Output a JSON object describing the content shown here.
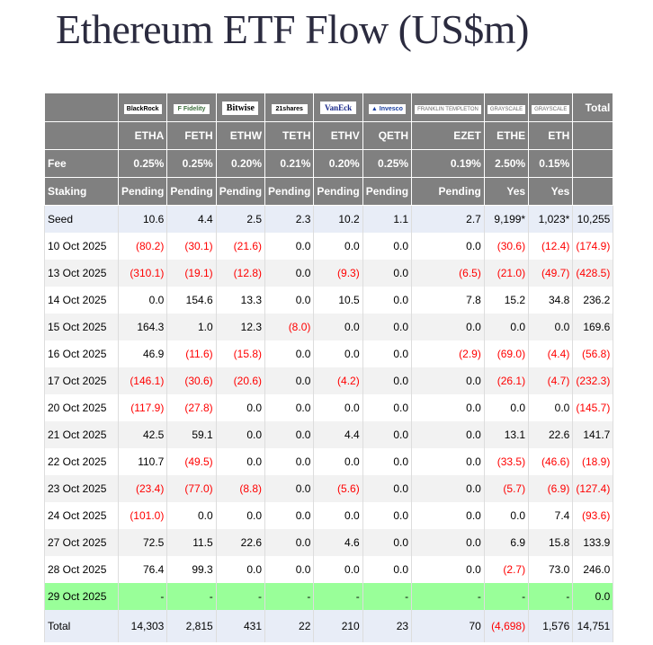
{
  "title": "Ethereum ETF Flow (US$m)",
  "issuers": [
    "BlackRock",
    "Fidelity",
    "Bitwise",
    "21shares",
    "VanEck",
    "Invesco",
    "Franklin Templeton",
    "Grayscale",
    "Grayscale"
  ],
  "tickers": [
    "ETHA",
    "FETH",
    "ETHW",
    "TETH",
    "ETHV",
    "QETH",
    "EZET",
    "ETHE",
    "ETH"
  ],
  "total_label": "Total",
  "fee_label": "Fee",
  "fees": [
    "0.25%",
    "0.25%",
    "0.20%",
    "0.21%",
    "0.20%",
    "0.25%",
    "0.19%",
    "2.50%",
    "0.15%"
  ],
  "staking_label": "Staking",
  "staking": [
    "Pending",
    "Pending",
    "Pending",
    "Pending",
    "Pending",
    "Pending",
    "Pending",
    "Yes",
    "Yes"
  ],
  "colors": {
    "header": "#808080",
    "negative": "#ff0000",
    "today": "#99ff99",
    "seed_total": "#e8edf7",
    "alt_row": "#f2f2f2"
  },
  "rows": [
    {
      "label": "Seed",
      "values": [
        "10.6",
        "4.4",
        "2.5",
        "2.3",
        "10.2",
        "1.1",
        "2.7",
        "9,199*",
        "1,023*",
        "10,255"
      ],
      "style": "seed"
    },
    {
      "label": "10 Oct 2025",
      "values": [
        "(80.2)",
        "(30.1)",
        "(21.6)",
        "0.0",
        "0.0",
        "0.0",
        "0.0",
        "(30.6)",
        "(12.4)",
        "(174.9)"
      ],
      "style": ""
    },
    {
      "label": "13 Oct 2025",
      "values": [
        "(310.1)",
        "(19.1)",
        "(12.8)",
        "0.0",
        "(9.3)",
        "0.0",
        "(6.5)",
        "(21.0)",
        "(49.7)",
        "(428.5)"
      ],
      "style": "alt"
    },
    {
      "label": "14 Oct 2025",
      "values": [
        "0.0",
        "154.6",
        "13.3",
        "0.0",
        "10.5",
        "0.0",
        "7.8",
        "15.2",
        "34.8",
        "236.2"
      ],
      "style": ""
    },
    {
      "label": "15 Oct 2025",
      "values": [
        "164.3",
        "1.0",
        "12.3",
        "(8.0)",
        "0.0",
        "0.0",
        "0.0",
        "0.0",
        "0.0",
        "169.6"
      ],
      "style": "alt"
    },
    {
      "label": "16 Oct 2025",
      "values": [
        "46.9",
        "(11.6)",
        "(15.8)",
        "0.0",
        "0.0",
        "0.0",
        "(2.9)",
        "(69.0)",
        "(4.4)",
        "(56.8)"
      ],
      "style": ""
    },
    {
      "label": "17 Oct 2025",
      "values": [
        "(146.1)",
        "(30.6)",
        "(20.6)",
        "0.0",
        "(4.2)",
        "0.0",
        "0.0",
        "(26.1)",
        "(4.7)",
        "(232.3)"
      ],
      "style": "alt"
    },
    {
      "label": "20 Oct 2025",
      "values": [
        "(117.9)",
        "(27.8)",
        "0.0",
        "0.0",
        "0.0",
        "0.0",
        "0.0",
        "0.0",
        "0.0",
        "(145.7)"
      ],
      "style": ""
    },
    {
      "label": "21 Oct 2025",
      "values": [
        "42.5",
        "59.1",
        "0.0",
        "0.0",
        "4.4",
        "0.0",
        "0.0",
        "13.1",
        "22.6",
        "141.7"
      ],
      "style": "alt"
    },
    {
      "label": "22 Oct 2025",
      "values": [
        "110.7",
        "(49.5)",
        "0.0",
        "0.0",
        "0.0",
        "0.0",
        "0.0",
        "(33.5)",
        "(46.6)",
        "(18.9)"
      ],
      "style": ""
    },
    {
      "label": "23 Oct 2025",
      "values": [
        "(23.4)",
        "(77.0)",
        "(8.8)",
        "0.0",
        "(5.6)",
        "0.0",
        "0.0",
        "(5.7)",
        "(6.9)",
        "(127.4)"
      ],
      "style": "alt"
    },
    {
      "label": "24 Oct 2025",
      "values": [
        "(101.0)",
        "0.0",
        "0.0",
        "0.0",
        "0.0",
        "0.0",
        "0.0",
        "0.0",
        "7.4",
        "(93.6)"
      ],
      "style": ""
    },
    {
      "label": "27 Oct 2025",
      "values": [
        "72.5",
        "11.5",
        "22.6",
        "0.0",
        "4.6",
        "0.0",
        "0.0",
        "6.9",
        "15.8",
        "133.9"
      ],
      "style": "alt"
    },
    {
      "label": "28 Oct 2025",
      "values": [
        "76.4",
        "99.3",
        "0.0",
        "0.0",
        "0.0",
        "0.0",
        "0.0",
        "(2.7)",
        "73.0",
        "246.0"
      ],
      "style": ""
    },
    {
      "label": "29 Oct 2025",
      "values": [
        "-",
        "-",
        "-",
        "-",
        "-",
        "-",
        "-",
        "-",
        "-",
        "0.0"
      ],
      "style": "today"
    },
    {
      "label": "Total",
      "values": [
        "14,303",
        "2,815",
        "431",
        "22",
        "210",
        "23",
        "70",
        "(4,698)",
        "1,576",
        "14,751"
      ],
      "style": "total"
    }
  ]
}
